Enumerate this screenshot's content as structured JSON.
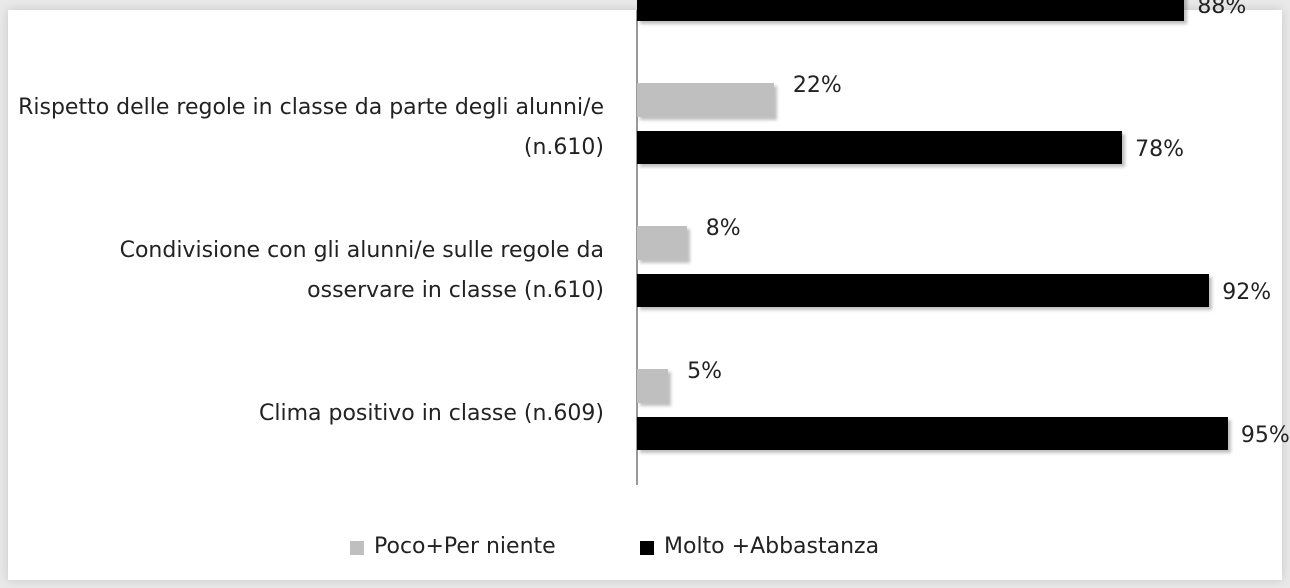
{
  "chart_data": {
    "type": "bar",
    "orientation": "horizontal",
    "categories": [
      null,
      "Rispetto delle regole in classe da parte degli alunni/e (n.610)",
      "Condivisione con gli alunni/e sulle regole da osservare in classe (n.610)",
      "Clima positivo in classe (n.609)"
    ],
    "series": [
      {
        "name": "Poco+Per niente",
        "color": "#bfbfbf",
        "values": [
          null,
          22,
          8,
          5
        ],
        "value_labels": [
          null,
          "22%",
          "8%",
          "5%"
        ]
      },
      {
        "name": "Molto +Abbastanza",
        "color": "#000000",
        "values": [
          88,
          78,
          92,
          95
        ],
        "value_labels": [
          "88%",
          "78%",
          "92%",
          "95%"
        ]
      }
    ],
    "xlim": [
      0,
      100
    ],
    "legend": "bottom"
  }
}
